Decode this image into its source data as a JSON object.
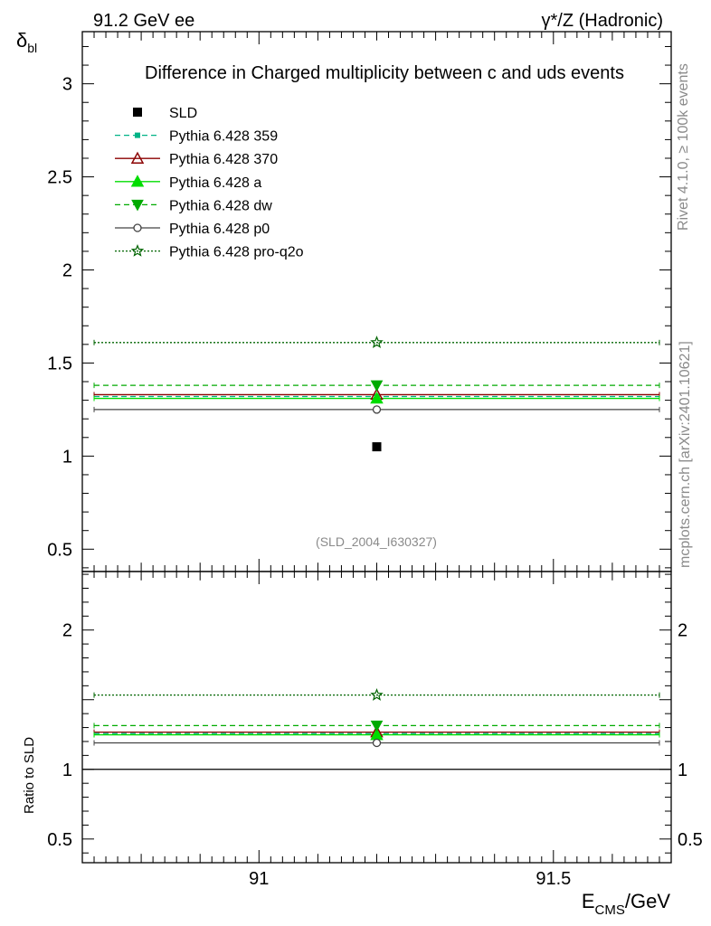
{
  "header": {
    "left": "91.2 GeV ee",
    "right": "γ*/Z (Hadronic)"
  },
  "side_text": {
    "rivet": "Rivet 4.1.0, ≥ 100k events",
    "site": "mcplots.cern.ch [arXiv:2401.10621]"
  },
  "chart_data": [
    {
      "type": "scatter",
      "title": "Difference in Charged multiplicity between c and uds events",
      "ylabel": "δbl",
      "ylabel_main": "δ",
      "ylabel_sub": "bl",
      "annotation": "(SLD_2004_I630327)",
      "xlim": [
        90.7,
        91.7
      ],
      "ylim": [
        0.38,
        3.28
      ],
      "yticks": [
        0.5,
        1,
        1.5,
        2,
        2.5,
        3
      ],
      "ytick_labels": [
        "0.5",
        "1",
        "1.5",
        "2",
        "2.5",
        "3"
      ],
      "x_bin": [
        90.72,
        91.68
      ],
      "x_point": 91.2,
      "legend_position": "top-left",
      "series": [
        {
          "name": "SLD",
          "marker": "square",
          "color": "#000000",
          "line": "none",
          "y": 1.05
        },
        {
          "name": "Pythia 6.428 359",
          "marker": "small-square",
          "color": "#00b386",
          "line": "dashed",
          "y": 1.32
        },
        {
          "name": "Pythia 6.428 370",
          "marker": "open-triangle",
          "color": "#8b0000",
          "line": "solid",
          "y": 1.33
        },
        {
          "name": "Pythia 6.428 a",
          "marker": "triangle",
          "color": "#00dd00",
          "line": "solid",
          "y": 1.31
        },
        {
          "name": "Pythia 6.428 dw",
          "marker": "triangle-down",
          "color": "#00aa00",
          "line": "dashed",
          "y": 1.38
        },
        {
          "name": "Pythia 6.428 p0",
          "marker": "open-circle",
          "color": "#444444",
          "line": "solid",
          "y": 1.25
        },
        {
          "name": "Pythia 6.428 pro-q2o",
          "marker": "open-star",
          "color": "#006400",
          "line": "dotted",
          "y": 1.61
        }
      ]
    },
    {
      "type": "scatter",
      "ylabel": "Ratio to SLD",
      "xlabel": "ECMS/GeV",
      "xlabel_main": "E",
      "xlabel_sub": "CMS",
      "xlabel_unit": "/GeV",
      "xlim": [
        90.7,
        91.7
      ],
      "ylim": [
        0.33,
        2.42
      ],
      "xticks": [
        91,
        91.5
      ],
      "xtick_labels": [
        "91",
        "91.5"
      ],
      "yticks": [
        0.5,
        1,
        2
      ],
      "ytick_labels": [
        "0.5",
        "1",
        "2"
      ],
      "x_bin": [
        90.72,
        91.68
      ],
      "x_point": 91.2,
      "reference": 1,
      "series": [
        {
          "name": "Pythia 6.428 359",
          "y": 1.257
        },
        {
          "name": "Pythia 6.428 370",
          "y": 1.267
        },
        {
          "name": "Pythia 6.428 a",
          "y": 1.248
        },
        {
          "name": "Pythia 6.428 dw",
          "y": 1.314
        },
        {
          "name": "Pythia 6.428 p0",
          "y": 1.19
        },
        {
          "name": "Pythia 6.428 pro-q2o",
          "y": 1.533
        }
      ]
    }
  ]
}
